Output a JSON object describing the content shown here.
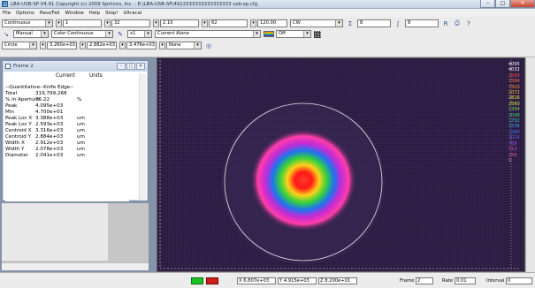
{
  "window": {
    "title": "LBA-USB-SP  V4.91   Copyright (c) 2009  Spiricon, Inc. - E:\\LBA-USB-SP\\4913333333333333333 usb-sp.cfg"
  },
  "menu": [
    "File",
    "Options",
    "Pass/Fail",
    "Window",
    "Help",
    "Stop!",
    "Ultracal"
  ],
  "toolbar1": {
    "mode": "Continuous",
    "val1": "1",
    "val2": "32",
    "val3": "2.10",
    "val4": "62",
    "val5": "120.00",
    "val6": "CW",
    "sum": "8",
    "integral": "8"
  },
  "toolbar2": {
    "mode": "Manual",
    "palette": "Color Continuous",
    "zoom": "x1",
    "source": "Current Alone",
    "grid": "Off"
  },
  "toolbar3": {
    "shape": "Circle",
    "v1": "3.260e+03",
    "v2": "2.882e+03",
    "v3": "3.476e+03",
    "v4": "None"
  },
  "frame2": {
    "title": "Frame 2",
    "col_current": "Current",
    "col_units": "Units",
    "section": "--Quantitative--Knife Edge--",
    "rows": [
      {
        "k": "Total",
        "v": "319,799,268",
        "u": ""
      },
      {
        "k": "% in Aperture",
        "v": "76.22",
        "u": "%"
      },
      {
        "k": "Peak",
        "v": "4.095e+03",
        "u": ""
      },
      {
        "k": "Min",
        "v": "4.700e+01",
        "u": ""
      },
      {
        "k": "Peak Loc X",
        "v": "3.388e+03",
        "u": "um"
      },
      {
        "k": "Peak Loc Y",
        "v": "2.593e+03",
        "u": "um"
      },
      {
        "k": "Centroid X",
        "v": "3.316e+03",
        "u": "um"
      },
      {
        "k": "Centroid Y",
        "v": "2.884e+03",
        "u": "um"
      },
      {
        "k": "Width X",
        "v": "2.912e+03",
        "u": "um"
      },
      {
        "k": "Width Y",
        "v": "2.078e+03",
        "u": "um"
      },
      {
        "k": "Diameter",
        "v": "2.041e+03",
        "u": "um"
      }
    ]
  },
  "scale_labels": [
    "4095",
    "4032",
    "1600",
    "1584",
    "7320",
    "1072",
    "2816",
    "2560",
    "1304",
    "2048",
    "1792",
    "1536",
    "1280",
    "1024",
    "768",
    "512",
    "256",
    "0"
  ],
  "status": {
    "x": "X 6.807e+03",
    "y": "Y 4.915e+03",
    "z": "Z 8.200e+01",
    "frame_label": "Frame",
    "frame_val": "2",
    "rate_label": "Rate",
    "rate_val": "0.01",
    "interval_label": "Interval",
    "interval_val": "0"
  },
  "colors": {
    "background": "#2c1d42",
    "beam_core": "#ff2020",
    "accent": "#1a5fe0"
  }
}
